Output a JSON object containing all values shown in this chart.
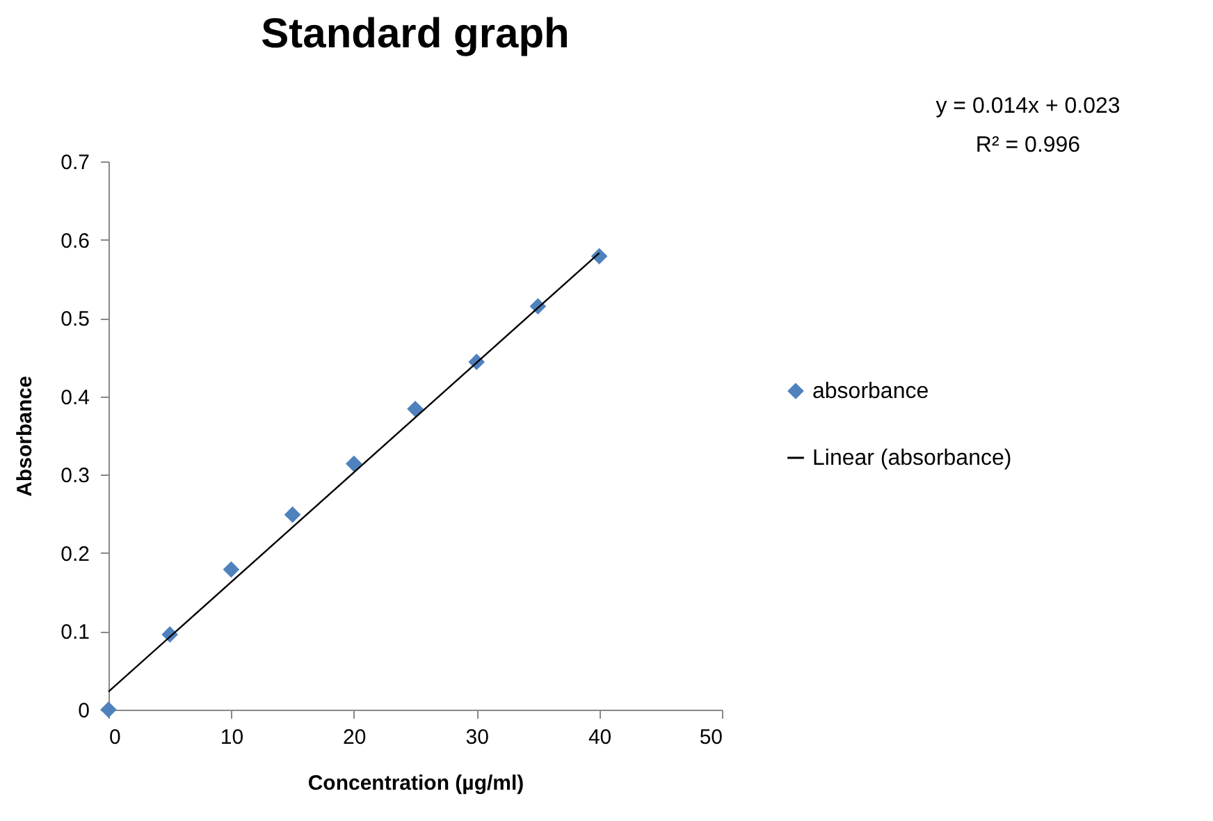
{
  "chart_data": {
    "type": "scatter",
    "title": "Standard graph",
    "xlabel": "Concentration (µg/ml)",
    "ylabel": "Absorbance",
    "annotations": [
      "y = 0.014x + 0.023",
      "R² = 0.996"
    ],
    "xlim": [
      0,
      50
    ],
    "xticks": [
      0,
      10,
      20,
      30,
      40,
      50
    ],
    "ylim": [
      0,
      0.7
    ],
    "yticks": [
      0,
      0.1,
      0.2,
      0.3,
      0.4,
      0.5,
      0.6,
      0.7
    ],
    "grid": false,
    "legend": "right",
    "series": [
      {
        "name": "absorbance",
        "marker": "diamond",
        "color": "#4f81bd",
        "x": [
          0,
          5,
          10,
          15,
          20,
          25,
          30,
          35,
          40
        ],
        "values": [
          0,
          0.096,
          0.179,
          0.249,
          0.314,
          0.384,
          0.444,
          0.515,
          0.579
        ]
      },
      {
        "name": "Linear (absorbance)",
        "type": "line",
        "line_style": "solid",
        "color": "#000000",
        "x": [
          0,
          40
        ],
        "values": [
          0.023,
          0.583
        ]
      }
    ]
  }
}
